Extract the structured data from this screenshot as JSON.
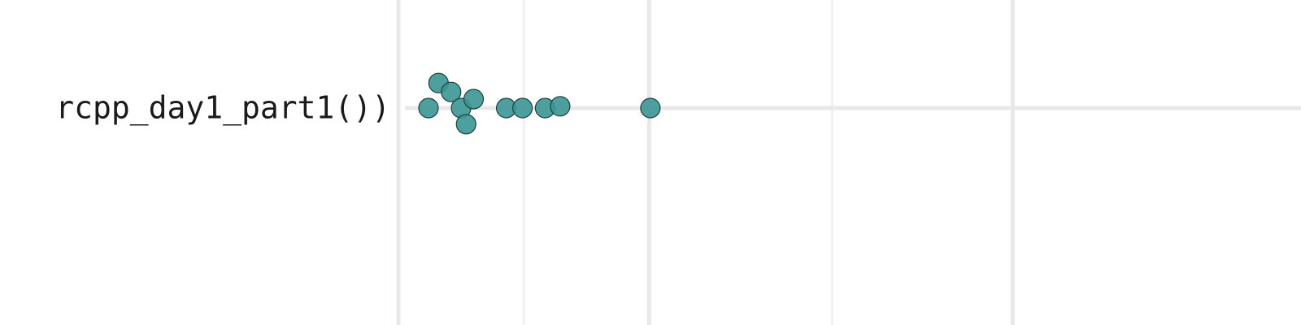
{
  "chart_data": {
    "type": "scatter",
    "title": "",
    "xlabel": "",
    "ylabel": "",
    "categories": [
      "rcpp_day1_part1())"
    ],
    "series": [
      {
        "category": "rcpp_day1_part1())",
        "points": [
          {
            "x": 2.0,
            "jitter": 0.0
          },
          {
            "x": 2.4,
            "jitter": -0.7
          },
          {
            "x": 2.9,
            "jitter": -0.45
          },
          {
            "x": 3.3,
            "jitter": 0.0
          },
          {
            "x": 3.5,
            "jitter": 0.45
          },
          {
            "x": 3.8,
            "jitter": -0.25
          },
          {
            "x": 5.1,
            "jitter": 0.0
          },
          {
            "x": 5.75,
            "jitter": 0.0
          },
          {
            "x": 6.65,
            "jitter": 0.0
          },
          {
            "x": 7.25,
            "jitter": -0.05
          },
          {
            "x": 10.85,
            "jitter": 0.0
          }
        ]
      }
    ],
    "xlim": [
      0.8,
      36.8
    ],
    "x_major_ticks": [
      0.8,
      10.8,
      25.3
    ],
    "x_minor_ticks": [
      5.8,
      18.1
    ],
    "grid": true,
    "point_color": "#3a9692",
    "point_edge_color": "#1f3f3c"
  }
}
